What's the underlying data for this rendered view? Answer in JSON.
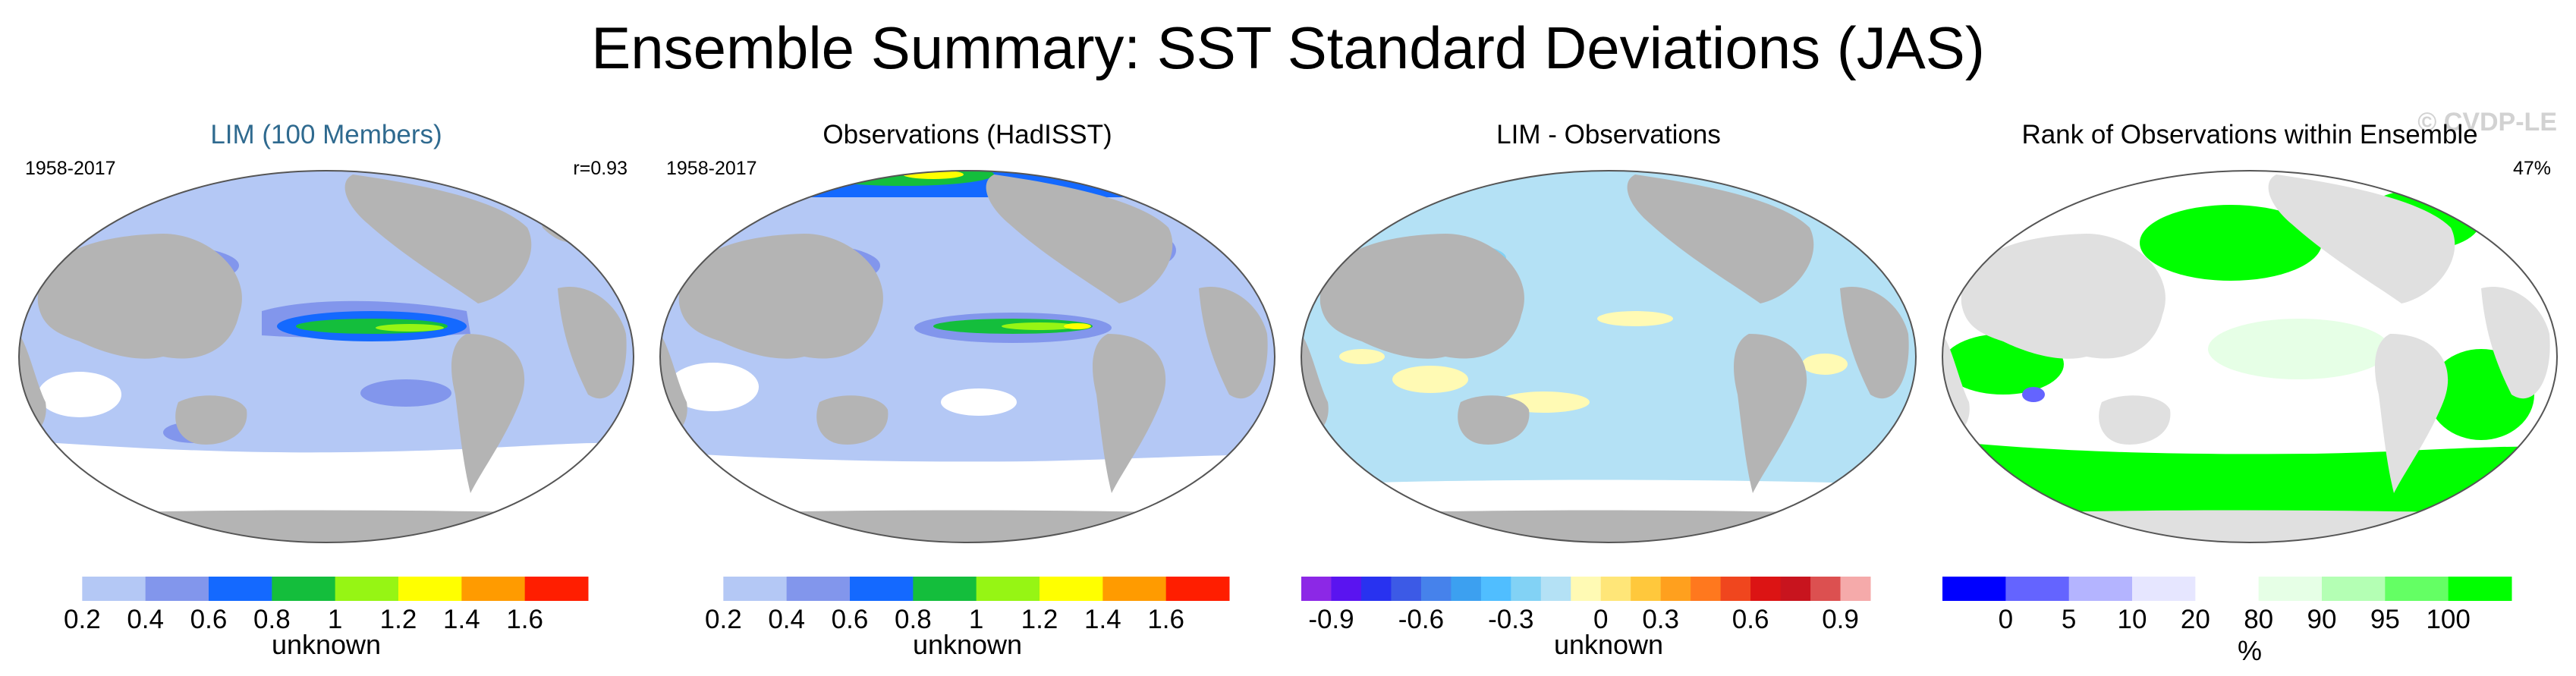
{
  "title": "Ensemble Summary: SST Standard Deviations (JAS)",
  "watermark": "© CVDP-LE",
  "colors": {
    "land": "#b4b4b4",
    "title_blue": "#2f6a8f"
  },
  "panels": [
    {
      "title": "LIM (100 Members)",
      "left_note": "1958-2017",
      "right_note": "r=0.93",
      "colorbar": {
        "label": "unknown",
        "ticks": [
          "0.2",
          "0.4",
          "0.6",
          "0.8",
          "1",
          "1.2",
          "1.4",
          "1.6"
        ],
        "colors": [
          "#ffffff",
          "#b4c8f5",
          "#8296ec",
          "#1469ff",
          "#14be3c",
          "#96f514",
          "#ffff00",
          "#ff9b00",
          "#ff1e00"
        ]
      }
    },
    {
      "title": "Observations (HadISST)",
      "left_note": "1958-2017",
      "right_note": "",
      "colorbar": {
        "label": "unknown",
        "ticks": [
          "0.2",
          "0.4",
          "0.6",
          "0.8",
          "1",
          "1.2",
          "1.4",
          "1.6"
        ],
        "colors": [
          "#ffffff",
          "#b4c8f5",
          "#8296ec",
          "#1469ff",
          "#14be3c",
          "#96f514",
          "#ffff00",
          "#ff9b00",
          "#ff1e00"
        ]
      }
    },
    {
      "title": "LIM - Observations",
      "left_note": "",
      "right_note": "",
      "colorbar": {
        "label": "unknown",
        "ticks": [
          "-0.9",
          "-0.6",
          "-0.3",
          "0",
          "0.3",
          "0.6",
          "0.9"
        ],
        "colors": [
          "#8c28e6",
          "#5a14f0",
          "#2832f0",
          "#3c5ae6",
          "#4682eb",
          "#3ca0f0",
          "#50beff",
          "#82d2f5",
          "#b4e1f5",
          "#fffab4",
          "#ffe678",
          "#ffc83c",
          "#ffa01e",
          "#ff781e",
          "#f0461e",
          "#dc1414",
          "#c8141e",
          "#dc5050",
          "#f5aaaa"
        ]
      }
    },
    {
      "title": "Rank of Observations within Ensemble",
      "left_note": "",
      "right_note": "47%",
      "colorbar": {
        "label": "%",
        "ticks": [
          "0",
          "5",
          "10",
          "20",
          "80",
          "90",
          "95",
          "100"
        ],
        "colors": [
          "#0000ff",
          "#6464ff",
          "#b4b4ff",
          "#e6e6ff",
          "#ffffff",
          "#e6ffe6",
          "#b4ffb4",
          "#64ff64",
          "#00ff00"
        ]
      }
    }
  ]
}
